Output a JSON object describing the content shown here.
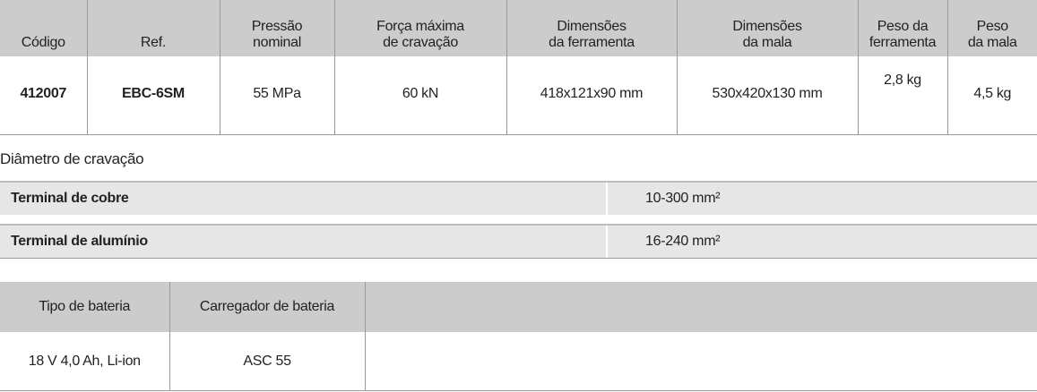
{
  "spec": {
    "headers": [
      "Código",
      "Ref.",
      "Pressão\nnominal",
      "Força máxima\nde cravação",
      "Dimensões\nda ferramenta",
      "Dimensões\nda mala",
      "Peso da\nferramenta",
      "Peso\nda mala"
    ],
    "row": [
      "412007",
      "EBC-6SM",
      "55 MPa",
      "60 kN",
      "418x121x90 mm",
      "530x420x130 mm",
      "2,8 kg",
      "4,5 kg"
    ]
  },
  "diameter": {
    "label": "Diâmetro de cravação",
    "rows": [
      {
        "name": "Terminal de cobre",
        "value": "10-300 mm²"
      },
      {
        "name": "Terminal de alumínio",
        "value": "16-240 mm²"
      }
    ]
  },
  "battery": {
    "headers": [
      "Tipo de bateria",
      "Carregador de bateria"
    ],
    "row": [
      "18 V 4,0 Ah, Li-ion",
      "ASC 55"
    ]
  }
}
